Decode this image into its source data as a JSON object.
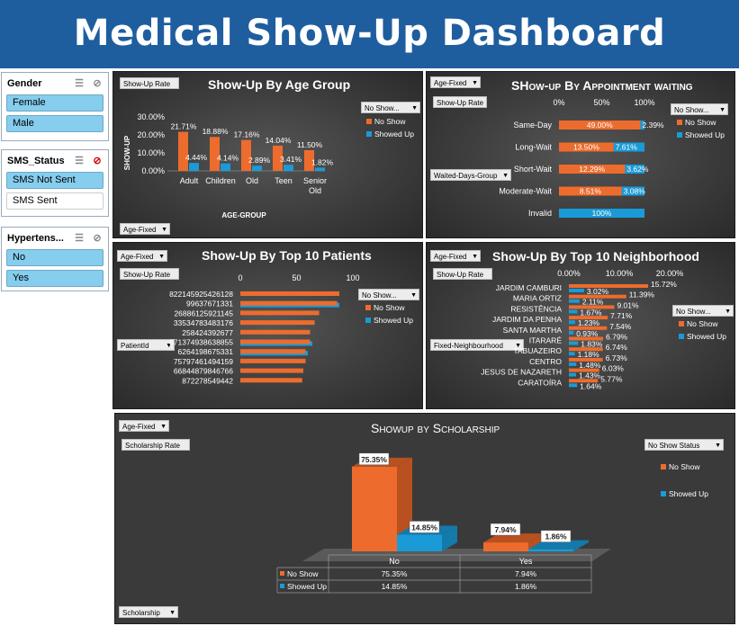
{
  "banner": {
    "title": "Medical Show-Up Dashboard"
  },
  "colors": {
    "no_show": "#ED6C2D",
    "showed_up": "#1A9BD7",
    "banner": "#1F5E9E",
    "slicer_selected": "#86CDEE"
  },
  "slicers": {
    "gender": {
      "title": "Gender",
      "items": [
        "Female",
        "Male"
      ]
    },
    "sms": {
      "title": "SMS_Status",
      "items": [
        "SMS Not Sent",
        "SMS Sent"
      ]
    },
    "hyper": {
      "title": "Hypertens...",
      "items": [
        "No",
        "Yes"
      ]
    }
  },
  "age_panel": {
    "title": "Show-Up By Age Group",
    "value_button": "Show-Up Rate",
    "axis_button": "Age-Fixed",
    "legend_button": "No Show...",
    "legend": [
      "No Show",
      "Showed Up"
    ]
  },
  "wait_panel": {
    "title": "SHow-up By Appointment waiting",
    "filter_button": "Age-Fixed",
    "value_button": "Show-Up Rate",
    "axis_button": "Waited-Days-Group",
    "legend_button": "No Show...",
    "legend": [
      "No Show",
      "Showed Up"
    ]
  },
  "patients_panel": {
    "title": "Show-Up By Top 10 Patients",
    "filter_button": "Age-Fixed",
    "value_button": "Show-Up Rate",
    "axis_button": "PatientId",
    "legend_button": "No Show...",
    "legend": [
      "No Show",
      "Showed Up"
    ]
  },
  "neigh_panel": {
    "title": "Show-Up By Top 10 Neighborhood",
    "filter_button": "Age-Fixed",
    "value_button": "Show-Up Rate",
    "axis_button": "Fixed-Neighbourhood",
    "legend_button": "No Show...",
    "legend": [
      "No Show",
      "Showed Up"
    ]
  },
  "scholar_panel": {
    "title": "Showup by Scholarship",
    "filter_button": "Age-Fixed",
    "value_button": "Scholarship Rate",
    "axis_button": "Scholarship",
    "legend_button": "No Show Status",
    "legend": [
      "No Show",
      "Showed Up"
    ]
  },
  "chart_data": [
    {
      "type": "bar",
      "title": "Show-Up By Age Group",
      "xlabel": "AGE-GROUP",
      "ylabel": "SHOW-UP",
      "categories": [
        "Adult",
        "Children",
        "Old",
        "Teen",
        "Senior Old"
      ],
      "yticks": [
        "0.00%",
        "10.00%",
        "20.00%",
        "30.00%"
      ],
      "ylim": [
        0,
        30
      ],
      "series": [
        {
          "name": "No Show",
          "values": [
            21.71,
            18.88,
            17.16,
            14.04,
            11.5
          ],
          "labels": [
            "21.71%",
            "18.88%",
            "17.16%",
            "14.04%",
            "11.50%"
          ]
        },
        {
          "name": "Showed Up",
          "values": [
            4.44,
            4.14,
            2.89,
            3.41,
            1.82
          ],
          "labels": [
            "4.44%",
            "4.14%",
            "2.89%",
            "3.41%",
            "1.82%"
          ]
        }
      ]
    },
    {
      "type": "bar",
      "orientation": "horizontal-stacked-100",
      "title": "SHow-up By Appointment waiting",
      "categories": [
        "Same-Day",
        "Long-Wait",
        "Short-Wait",
        "Moderate-Wait",
        "Invalid"
      ],
      "xticks": [
        "0%",
        "50%",
        "100%"
      ],
      "series": [
        {
          "name": "No Show",
          "values": [
            49.0,
            13.5,
            12.29,
            8.51,
            0
          ],
          "labels": [
            "49.00%",
            "13.50%",
            "12.29%",
            "8.51%",
            ""
          ]
        },
        {
          "name": "Showed Up",
          "values": [
            2.39,
            7.61,
            3.62,
            3.08,
            100
          ],
          "labels": [
            "2.39%",
            "7.61%",
            "3.62%",
            "3.08%",
            "100%"
          ]
        }
      ]
    },
    {
      "type": "bar",
      "orientation": "horizontal",
      "title": "Show-Up By Top 10 Patients",
      "categories": [
        "822145925426128",
        "99637671331",
        "26886125921145",
        "33534783483176",
        "258424392677",
        "871374938638855",
        "6264198675331",
        "75797461494159",
        "66844879846766",
        "872278549442"
      ],
      "xticks": [
        "0",
        "50",
        "100"
      ],
      "xlim": [
        0,
        100
      ],
      "series": [
        {
          "name": "No Show",
          "values": [
            88,
            86,
            70,
            66,
            62,
            62,
            58,
            58,
            56,
            55
          ]
        },
        {
          "name": "Showed Up",
          "values": [
            0,
            88,
            0,
            0,
            0,
            64,
            60,
            0,
            0,
            0
          ]
        }
      ]
    },
    {
      "type": "bar",
      "orientation": "horizontal",
      "title": "Show-Up By Top 10 Neighborhood",
      "categories": [
        "JARDIM CAMBURI",
        "MARIA ORTIZ",
        "RESISTÊNCIA",
        "JARDIM DA PENHA",
        "SANTA MARTHA",
        "ITARARÉ",
        "TABUAZEIRO",
        "CENTRO",
        "JESUS DE NAZARETH",
        "CARATOÍRA"
      ],
      "xticks": [
        "0.00%",
        "10.00%",
        "20.00%"
      ],
      "xlim": [
        0,
        20
      ],
      "series": [
        {
          "name": "No Show",
          "values": [
            15.72,
            11.39,
            9.01,
            7.71,
            7.54,
            6.79,
            6.74,
            6.73,
            6.03,
            5.77
          ],
          "labels": [
            "15.72%",
            "11.39%",
            "9.01%",
            "7.71%",
            "7.54%",
            "6.79%",
            "6.74%",
            "6.73%",
            "6.03%",
            "5.77%"
          ]
        },
        {
          "name": "Showed Up",
          "values": [
            3.02,
            2.11,
            1.67,
            1.23,
            0.93,
            1.83,
            1.18,
            1.48,
            1.43,
            1.64
          ],
          "labels": [
            "3.02%",
            "2.11%",
            "1.67%",
            "1.23%",
            "0.93%",
            "1.83%",
            "1.18%",
            "1.48%",
            "1.43%",
            "1.64%"
          ]
        }
      ]
    },
    {
      "type": "bar",
      "title": "Showup by Scholarship",
      "categories": [
        "No",
        "Yes"
      ],
      "ylim": [
        0,
        80
      ],
      "series": [
        {
          "name": "No Show",
          "values": [
            75.35,
            7.94
          ],
          "labels": [
            "75.35%",
            "7.94%"
          ]
        },
        {
          "name": "Showed Up",
          "values": [
            14.85,
            1.86
          ],
          "labels": [
            "14.85%",
            "1.86%"
          ]
        }
      ],
      "table": {
        "rows": [
          {
            "name": "No Show",
            "cells": [
              "75.35%",
              "7.94%"
            ]
          },
          {
            "name": "Showed Up",
            "cells": [
              "14.85%",
              "1.86%"
            ]
          }
        ]
      }
    }
  ]
}
